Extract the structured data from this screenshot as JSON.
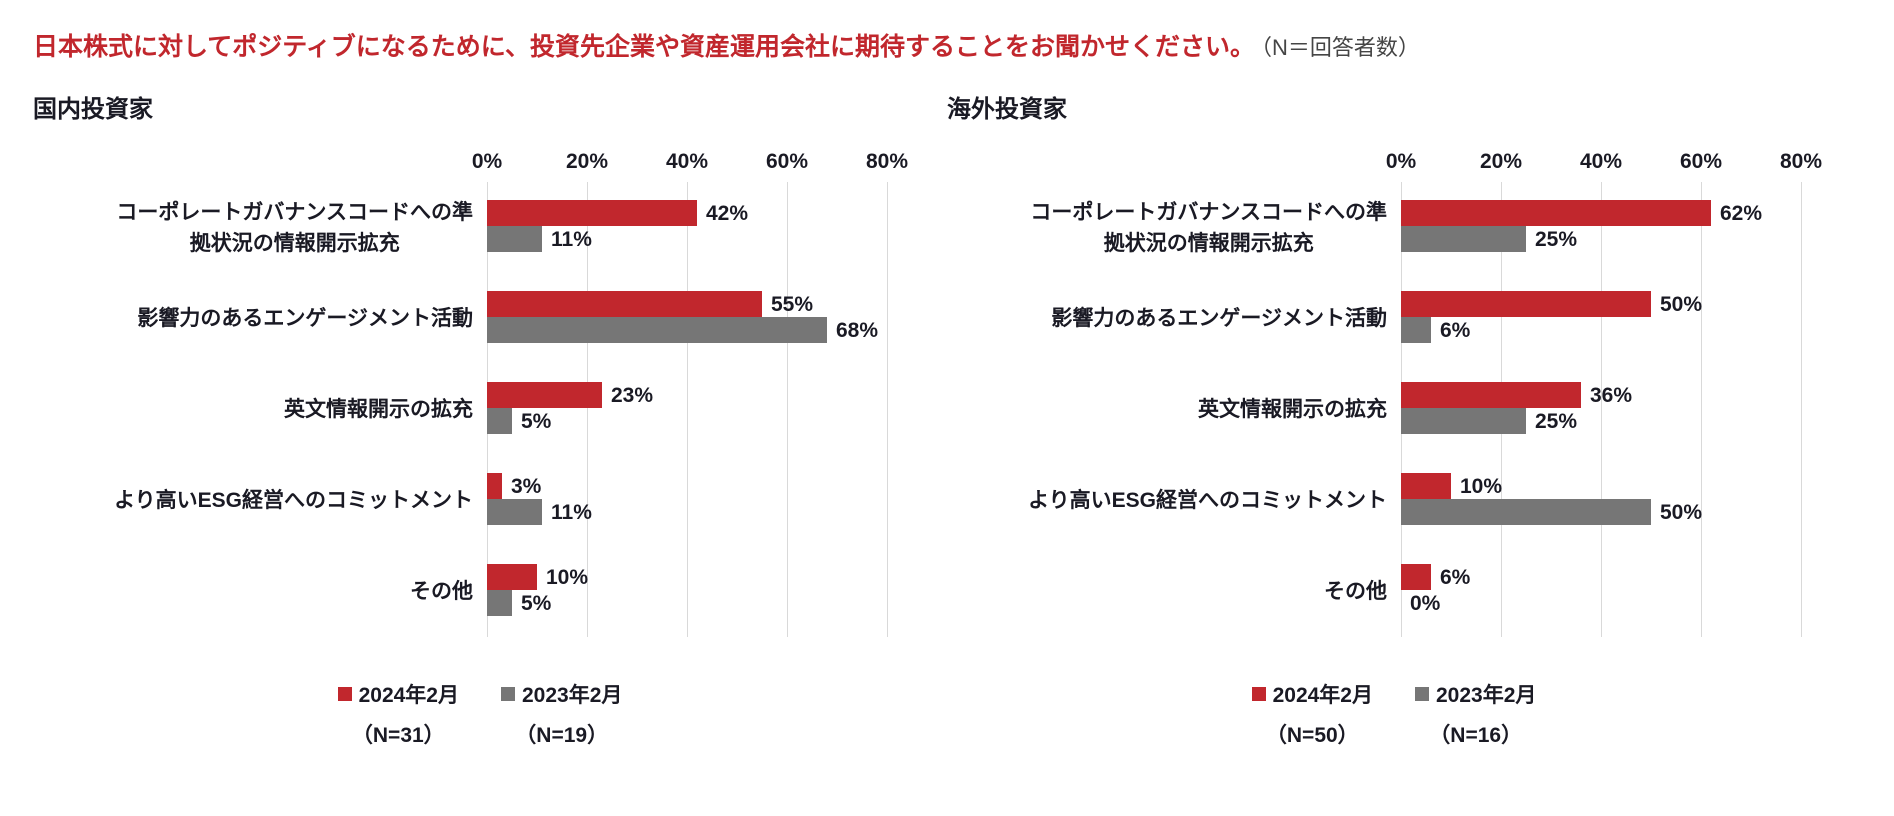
{
  "title": {
    "question": "日本株式に対してポジティブになるために、投資先企業や資産運用会社に期待することをお聞かせください。",
    "n_note": "（N＝回答者数）"
  },
  "colors": {
    "series_2024": "#c1272d",
    "series_2023": "#767676",
    "grid": "#d9d9d9",
    "title_red": "#c1272d",
    "text": "#1a1a24"
  },
  "chart_data": [
    {
      "type": "bar",
      "orientation": "horizontal",
      "title": "国内投資家",
      "categories": [
        "コーポレートガバナンスコードへの準拠状況の情報開示拡充",
        "影響力のあるエンゲージメント活動",
        "英文情報開示の拡充",
        "より高いESG経営へのコミットメント",
        "その他"
      ],
      "category_lines": [
        [
          "コーポレートガバナンスコードへの準",
          "拠状況の情報開示拡充"
        ],
        [
          "影響力のあるエンゲージメント活動"
        ],
        [
          "英文情報開示の拡充"
        ],
        [
          "より高いESG経営へのコミットメント"
        ],
        [
          "その他"
        ]
      ],
      "series": [
        {
          "name": "2024年2月",
          "n_label": "（N=31）",
          "color": "#c1272d",
          "values": [
            42,
            55,
            23,
            3,
            10
          ]
        },
        {
          "name": "2023年2月",
          "n_label": "（N=19）",
          "color": "#767676",
          "values": [
            11,
            68,
            5,
            11,
            5
          ]
        }
      ],
      "xlim": [
        0,
        80
      ],
      "x_ticks": [
        "0%",
        "20%",
        "40%",
        "60%",
        "80%"
      ],
      "grid": true,
      "legend_position": "bottom",
      "value_label_suffix": "%"
    },
    {
      "type": "bar",
      "orientation": "horizontal",
      "title": "海外投資家",
      "categories": [
        "コーポレートガバナンスコードへの準拠状況の情報開示拡充",
        "影響力のあるエンゲージメント活動",
        "英文情報開示の拡充",
        "より高いESG経営へのコミットメント",
        "その他"
      ],
      "category_lines": [
        [
          "コーポレートガバナンスコードへの準",
          "拠状況の情報開示拡充"
        ],
        [
          "影響力のあるエンゲージメント活動"
        ],
        [
          "英文情報開示の拡充"
        ],
        [
          "より高いESG経営へのコミットメント"
        ],
        [
          "その他"
        ]
      ],
      "series": [
        {
          "name": "2024年2月",
          "n_label": "（N=50）",
          "color": "#c1272d",
          "values": [
            62,
            50,
            36,
            10,
            6
          ]
        },
        {
          "name": "2023年2月",
          "n_label": "（N=16）",
          "color": "#767676",
          "values": [
            25,
            6,
            25,
            50,
            0
          ]
        }
      ],
      "xlim": [
        0,
        80
      ],
      "x_ticks": [
        "0%",
        "20%",
        "40%",
        "60%",
        "80%"
      ],
      "grid": true,
      "legend_position": "bottom",
      "value_label_suffix": "%"
    }
  ]
}
